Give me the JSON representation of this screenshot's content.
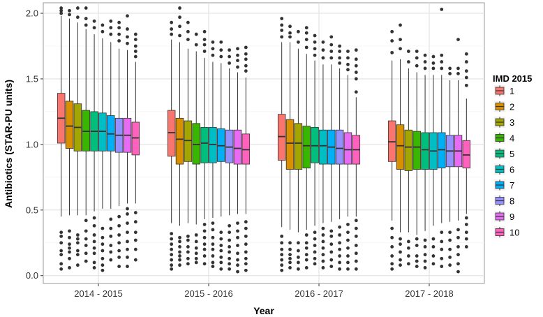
{
  "chart_data": {
    "type": "boxplot",
    "title": "",
    "xlabel": "Year",
    "ylabel": "Antibiotics (STAR-PU units)",
    "ylim": [
      -0.06,
      2.08
    ],
    "yticks": [
      "0.0",
      "0.5",
      "1.0",
      "1.5",
      "2.0"
    ],
    "ytick_values": [
      0.0,
      0.5,
      1.0,
      1.5,
      2.0
    ],
    "grid": true,
    "categories": [
      "2014 - 2015",
      "2015 - 2016",
      "2016 - 2017",
      "2017 - 2018"
    ],
    "legend": {
      "title": "IMD 2015",
      "position": "right",
      "labels": [
        "1",
        "2",
        "3",
        "4",
        "5",
        "6",
        "7",
        "8",
        "9",
        "10"
      ],
      "colors": [
        "#F8766D",
        "#D89000",
        "#A3A500",
        "#39B600",
        "#00BF7D",
        "#00BFC4",
        "#00B0F6",
        "#9590FF",
        "#E76BF3",
        "#FF62BC"
      ]
    },
    "series": [
      {
        "name": "1",
        "boxes": [
          {
            "q1": 1.01,
            "median": 1.2,
            "q3": 1.39,
            "whisker_low": 0.45,
            "whisker_high": 1.98,
            "outliers": [
              0.05,
              0.09,
              0.16,
              0.19,
              0.25,
              0.3,
              0.33,
              2.0,
              2.02,
              2.04
            ]
          },
          {
            "q1": 0.91,
            "median": 1.09,
            "q3": 1.26,
            "whisker_low": 0.4,
            "whisker_high": 1.8,
            "outliers": [
              0.05,
              0.08,
              0.12,
              0.16,
              0.2,
              0.24,
              0.28,
              0.32,
              1.84,
              1.88,
              1.93
            ]
          },
          {
            "q1": 0.88,
            "median": 1.06,
            "q3": 1.23,
            "whisker_low": 0.37,
            "whisker_high": 1.78,
            "outliers": [
              0.04,
              0.08,
              0.12,
              0.16,
              0.2,
              0.25,
              0.3,
              1.82,
              1.87,
              1.91,
              1.96
            ]
          },
          {
            "q1": 0.87,
            "median": 1.02,
            "q3": 1.18,
            "whisker_low": 0.42,
            "whisker_high": 1.64,
            "outliers": [
              0.05,
              0.09,
              0.15,
              0.22,
              0.29,
              0.36,
              1.7,
              1.79,
              1.86
            ]
          }
        ]
      },
      {
        "name": "2",
        "boxes": [
          {
            "q1": 0.97,
            "median": 1.14,
            "q3": 1.33,
            "whisker_low": 0.46,
            "whisker_high": 1.96,
            "outliers": [
              0.06,
              0.13,
              0.18,
              0.21,
              0.24,
              0.29,
              0.34,
              1.99,
              2.02
            ]
          },
          {
            "q1": 0.85,
            "median": 1.04,
            "q3": 1.2,
            "whisker_low": 0.38,
            "whisker_high": 1.78,
            "outliers": [
              0.08,
              0.12,
              0.15,
              0.18,
              0.22,
              0.26,
              0.29,
              1.83,
              1.9,
              1.97,
              2.04
            ]
          },
          {
            "q1": 0.81,
            "median": 1.01,
            "q3": 1.19,
            "whisker_low": 0.35,
            "whisker_high": 1.78,
            "outliers": [
              0.06,
              0.1,
              0.13,
              0.16,
              0.2,
              0.25,
              1.82,
              1.85,
              1.9
            ]
          },
          {
            "q1": 0.81,
            "median": 0.99,
            "q3": 1.15,
            "whisker_low": 0.33,
            "whisker_high": 1.65,
            "outliers": [
              0.08,
              0.12,
              0.18,
              0.24,
              0.28,
              1.73,
              1.8,
              1.91
            ]
          }
        ]
      },
      {
        "name": "3",
        "boxes": [
          {
            "q1": 0.95,
            "median": 1.13,
            "q3": 1.31,
            "whisker_low": 0.46,
            "whisker_high": 1.93,
            "outliers": [
              0.08,
              0.16,
              0.19,
              0.25,
              0.28,
              0.31,
              1.97,
              2.04
            ]
          },
          {
            "q1": 0.87,
            "median": 1.03,
            "q3": 1.18,
            "whisker_low": 0.4,
            "whisker_high": 1.73,
            "outliers": [
              0.09,
              0.13,
              0.18,
              0.22,
              0.27,
              0.3,
              1.8,
              1.86,
              1.93
            ]
          },
          {
            "q1": 0.81,
            "median": 1.01,
            "q3": 1.16,
            "whisker_low": 0.33,
            "whisker_high": 1.73,
            "outliers": [
              0.05,
              0.1,
              0.14,
              0.19,
              0.25,
              1.78,
              1.86
            ]
          },
          {
            "q1": 0.8,
            "median": 0.98,
            "q3": 1.11,
            "whisker_low": 0.33,
            "whisker_high": 1.58,
            "outliers": [
              0.09,
              0.15,
              0.21,
              0.26,
              1.63,
              1.71
            ]
          }
        ]
      },
      {
        "name": "4",
        "boxes": [
          {
            "q1": 0.95,
            "median": 1.1,
            "q3": 1.26,
            "whisker_low": 0.46,
            "whisker_high": 1.88,
            "outliers": [
              0.11,
              0.17,
              0.23,
              0.28,
              0.34,
              0.42,
              1.91,
              1.96,
              2.04
            ]
          },
          {
            "q1": 0.85,
            "median": 1.0,
            "q3": 1.16,
            "whisker_low": 0.39,
            "whisker_high": 1.71,
            "outliers": [
              0.1,
              0.13,
              0.17,
              0.21,
              0.26,
              0.31,
              1.76,
              1.84
            ]
          },
          {
            "q1": 0.82,
            "median": 0.99,
            "q3": 1.14,
            "whisker_low": 0.35,
            "whisker_high": 1.69,
            "outliers": [
              0.06,
              0.12,
              0.16,
              0.21,
              0.25,
              0.31,
              1.74,
              1.8,
              1.85,
              1.89
            ]
          },
          {
            "q1": 0.81,
            "median": 0.98,
            "q3": 1.1,
            "whisker_low": 0.31,
            "whisker_high": 1.55,
            "outliers": [
              0.07,
              0.11,
              0.15,
              0.23,
              0.28,
              1.6,
              1.66,
              1.71
            ]
          }
        ]
      },
      {
        "name": "5",
        "boxes": [
          {
            "q1": 0.95,
            "median": 1.1,
            "q3": 1.25,
            "whisker_low": 0.49,
            "whisker_high": 1.84,
            "outliers": [
              0.06,
              0.1,
              0.17,
              0.21,
              0.26,
              0.31,
              0.38,
              0.44,
              1.89,
              1.94
            ]
          },
          {
            "q1": 0.86,
            "median": 1.01,
            "q3": 1.13,
            "whisker_low": 0.43,
            "whisker_high": 1.66,
            "outliers": [
              0.09,
              0.15,
              0.2,
              0.24,
              0.29,
              0.34,
              0.39,
              1.71,
              1.76,
              1.8,
              1.86
            ]
          },
          {
            "q1": 0.86,
            "median": 0.99,
            "q3": 1.13,
            "whisker_low": 0.38,
            "whisker_high": 1.64,
            "outliers": [
              0.09,
              0.13,
              0.18,
              0.23,
              0.28,
              0.33,
              1.68,
              1.73,
              1.78,
              1.83
            ]
          },
          {
            "q1": 0.81,
            "median": 0.96,
            "q3": 1.09,
            "whisker_low": 0.34,
            "whisker_high": 1.53,
            "outliers": [
              0.06,
              0.11,
              0.16,
              0.22,
              0.27,
              1.58,
              1.63,
              1.68
            ]
          }
        ]
      },
      {
        "name": "6",
        "boxes": [
          {
            "q1": 0.95,
            "median": 1.1,
            "q3": 1.24,
            "whisker_low": 0.51,
            "whisker_high": 1.81,
            "outliers": [
              0.04,
              0.08,
              0.13,
              0.19,
              0.24,
              0.29,
              0.36,
              1.86,
              1.91
            ]
          },
          {
            "q1": 0.86,
            "median": 1.0,
            "q3": 1.13,
            "whisker_low": 0.44,
            "whisker_high": 1.63,
            "outliers": [
              0.07,
              0.1,
              0.15,
              0.2,
              0.24,
              0.29,
              0.35,
              0.4,
              1.68,
              1.73,
              1.78
            ]
          },
          {
            "q1": 0.85,
            "median": 0.99,
            "q3": 1.11,
            "whisker_low": 0.4,
            "whisker_high": 1.61,
            "outliers": [
              0.06,
              0.11,
              0.16,
              0.21,
              0.26,
              0.31,
              0.36,
              1.66,
              1.72,
              1.78
            ]
          },
          {
            "q1": 0.81,
            "median": 0.95,
            "q3": 1.09,
            "whisker_low": 0.38,
            "whisker_high": 1.53,
            "outliers": [
              0.09,
              0.15,
              0.22,
              0.28,
              1.58,
              1.62,
              1.67
            ]
          }
        ]
      },
      {
        "name": "7",
        "boxes": [
          {
            "q1": 0.95,
            "median": 1.08,
            "q3": 1.22,
            "whisker_low": 0.51,
            "whisker_high": 1.78,
            "outliers": [
              0.12,
              0.18,
              0.23,
              0.3,
              0.36,
              0.43,
              1.84,
              1.89,
              1.94
            ]
          },
          {
            "q1": 0.87,
            "median": 0.99,
            "q3": 1.12,
            "whisker_low": 0.45,
            "whisker_high": 1.62,
            "outliers": [
              0.05,
              0.1,
              0.14,
              0.19,
              0.23,
              0.28,
              0.33,
              1.67,
              1.72,
              1.78
            ]
          },
          {
            "q1": 0.85,
            "median": 0.98,
            "q3": 1.11,
            "whisker_low": 0.41,
            "whisker_high": 1.61,
            "outliers": [
              0.07,
              0.12,
              0.18,
              0.24,
              0.3,
              0.34,
              1.66,
              1.71,
              1.76,
              1.82
            ]
          },
          {
            "q1": 0.82,
            "median": 0.96,
            "q3": 1.09,
            "whisker_low": 0.4,
            "whisker_high": 1.53,
            "outliers": [
              0.07,
              0.13,
              0.2,
              0.26,
              0.33,
              1.58,
              1.63,
              1.68,
              2.03
            ]
          }
        ]
      },
      {
        "name": "8",
        "boxes": [
          {
            "q1": 0.94,
            "median": 1.07,
            "q3": 1.2,
            "whisker_low": 0.53,
            "whisker_high": 1.73,
            "outliers": [
              0.07,
              0.14,
              0.19,
              0.25,
              0.31,
              0.38,
              0.45,
              1.79,
              1.84,
              1.89,
              1.93
            ]
          },
          {
            "q1": 0.86,
            "median": 0.98,
            "q3": 1.11,
            "whisker_low": 0.46,
            "whisker_high": 1.58,
            "outliers": [
              0.05,
              0.09,
              0.13,
              0.18,
              0.22,
              0.27,
              0.33,
              0.38,
              1.62,
              1.67,
              1.72
            ]
          },
          {
            "q1": 0.85,
            "median": 0.97,
            "q3": 1.11,
            "whisker_low": 0.43,
            "whisker_high": 1.58,
            "outliers": [
              0.05,
              0.1,
              0.15,
              0.2,
              0.25,
              0.31,
              0.37,
              1.62,
              1.66,
              1.71,
              1.75
            ]
          },
          {
            "q1": 0.83,
            "median": 0.95,
            "q3": 1.07,
            "whisker_low": 0.41,
            "whisker_high": 1.49,
            "outliers": [
              0.08,
              0.14,
              0.2,
              0.27,
              0.33,
              1.54,
              1.58
            ]
          }
        ]
      },
      {
        "name": "9",
        "boxes": [
          {
            "q1": 0.94,
            "median": 1.07,
            "q3": 1.2,
            "whisker_low": 0.55,
            "whisker_high": 1.72,
            "outliers": [
              0.07,
              0.14,
              0.2,
              0.26,
              0.33,
              0.4,
              0.47,
              0.51,
              1.77,
              1.82,
              1.88,
              1.98
            ]
          },
          {
            "q1": 0.85,
            "median": 0.97,
            "q3": 1.11,
            "whisker_low": 0.47,
            "whisker_high": 1.55,
            "outliers": [
              0.03,
              0.08,
              0.12,
              0.17,
              0.23,
              0.29,
              0.34,
              0.4,
              1.59,
              1.64,
              1.68,
              1.73
            ]
          },
          {
            "q1": 0.85,
            "median": 0.96,
            "q3": 1.09,
            "whisker_low": 0.45,
            "whisker_high": 1.53,
            "outliers": [
              0.05,
              0.1,
              0.15,
              0.21,
              0.27,
              0.33,
              0.39,
              1.57,
              1.61,
              1.66,
              1.71
            ]
          },
          {
            "q1": 0.83,
            "median": 0.95,
            "q3": 1.07,
            "whisker_low": 0.42,
            "whisker_high": 1.49,
            "outliers": [
              0.03,
              0.09,
              0.16,
              0.22,
              0.29,
              0.35,
              1.54,
              1.58,
              1.8
            ]
          }
        ]
      },
      {
        "name": "10",
        "boxes": [
          {
            "q1": 0.92,
            "median": 1.05,
            "q3": 1.17,
            "whisker_low": 0.55,
            "whisker_high": 1.63,
            "outliers": [
              0.12,
              0.2,
              0.27,
              0.33,
              0.41,
              0.48,
              1.67,
              1.71,
              1.75,
              1.8,
              1.84
            ]
          },
          {
            "q1": 0.85,
            "median": 0.96,
            "q3": 1.08,
            "whisker_low": 0.47,
            "whisker_high": 1.51,
            "outliers": [
              0.04,
              0.09,
              0.13,
              0.18,
              0.24,
              0.3,
              0.36,
              0.41,
              1.56,
              1.6,
              1.65,
              1.69,
              1.74
            ]
          },
          {
            "q1": 0.85,
            "median": 0.96,
            "q3": 1.07,
            "whisker_low": 0.45,
            "whisker_high": 1.36,
            "outliers": [
              0.05,
              0.11,
              0.17,
              0.23,
              0.3,
              0.36,
              0.42,
              1.4,
              1.5,
              1.55,
              1.6,
              1.65,
              1.72
            ]
          },
          {
            "q1": 0.82,
            "median": 0.92,
            "q3": 1.03,
            "whisker_low": 0.47,
            "whisker_high": 1.35,
            "outliers": [
              0.22,
              0.28,
              0.33,
              0.39,
              0.44,
              1.45,
              1.51,
              1.56,
              1.63,
              1.69
            ]
          }
        ]
      }
    ]
  }
}
